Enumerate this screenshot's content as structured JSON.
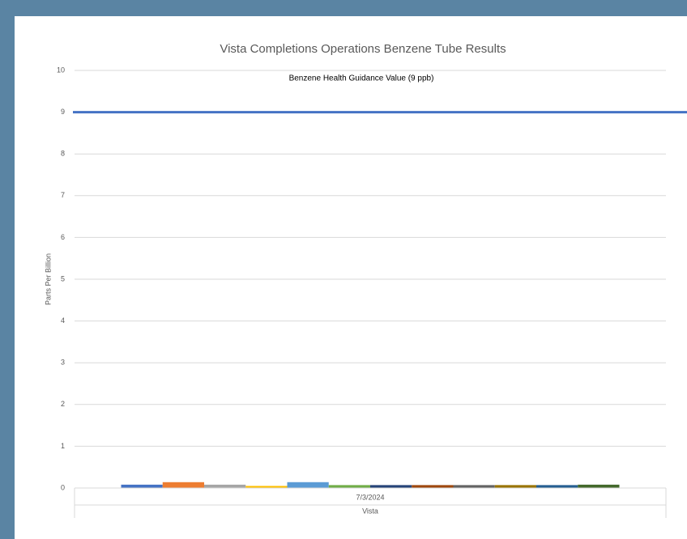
{
  "chart_data": {
    "type": "bar",
    "title": "Vista Completions Operations Benzene Tube Results",
    "y_label": "Parts Per Billion",
    "categories": [
      "7/3/2024"
    ],
    "category_group": "Vista",
    "series": [
      {
        "color": "#4472c4",
        "values": [
          0.08
        ]
      },
      {
        "color": "#ed7d31",
        "values": [
          0.14
        ]
      },
      {
        "color": "#a5a5a5",
        "values": [
          0.08
        ]
      },
      {
        "color": "#ffc000",
        "values": [
          0.05
        ]
      },
      {
        "color": "#5b9bd5",
        "values": [
          0.14
        ]
      },
      {
        "color": "#70ad47",
        "values": [
          0.07
        ]
      },
      {
        "color": "#264478",
        "values": [
          0.07
        ]
      },
      {
        "color": "#9e480e",
        "values": [
          0.07
        ]
      },
      {
        "color": "#636363",
        "values": [
          0.07
        ]
      },
      {
        "color": "#997300",
        "values": [
          0.07
        ]
      },
      {
        "color": "#255e91",
        "values": [
          0.07
        ]
      },
      {
        "color": "#43682b",
        "values": [
          0.08
        ]
      }
    ],
    "reference_line": {
      "value": 9,
      "label": "Benzene Health Guidance Value (9 ppb)",
      "color": "#4472c4"
    },
    "ylim": [
      0,
      10
    ],
    "yticks": [
      0,
      1,
      2,
      3,
      4,
      5,
      6,
      7,
      8,
      9,
      10
    ],
    "grid": true
  }
}
